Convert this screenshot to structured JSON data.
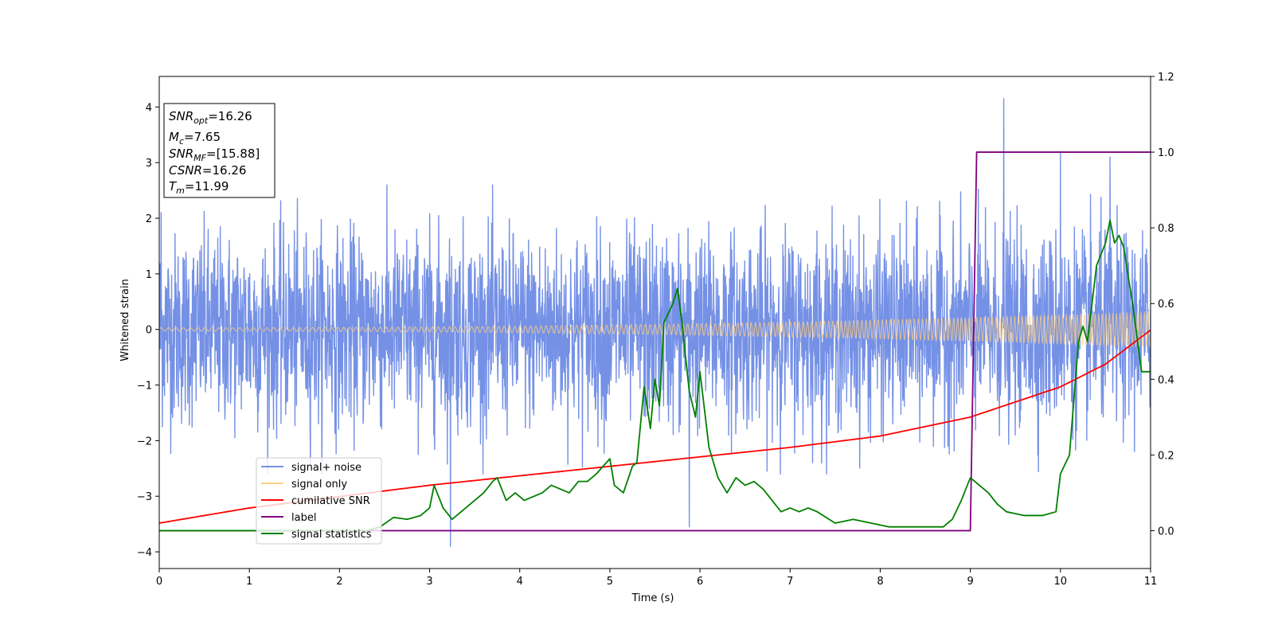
{
  "chart_data": {
    "type": "line",
    "title": "",
    "xlabel": "Time (s)",
    "ylabel": "Whitened strain",
    "xlim": [
      0,
      11
    ],
    "ylim": [
      -4.3,
      4.55
    ],
    "y2lim": [
      -0.1,
      1.2
    ],
    "xticks": [
      "0",
      "1",
      "2",
      "3",
      "4",
      "5",
      "6",
      "7",
      "8",
      "9",
      "10",
      "11"
    ],
    "yticks": [
      "−4",
      "−3",
      "−2",
      "−1",
      "0",
      "1",
      "2",
      "3",
      "4"
    ],
    "y2ticks": [
      "0.0",
      "0.2",
      "0.4",
      "0.6",
      "0.8",
      "1.0",
      "1.2"
    ],
    "grid": false,
    "legend_position": "lower-left",
    "info_box": [
      {
        "base": "SNR",
        "sub": "opt",
        "value": "=16.26"
      },
      {
        "base": "M",
        "sub": "c",
        "value": "=7.65"
      },
      {
        "base": "SNR",
        "sub": "MF",
        "value": "=[15.88]"
      },
      {
        "base": "CSNR",
        "sub": "",
        "value": "=16.26"
      },
      {
        "base": "T",
        "sub": "m",
        "value": "=11.99"
      }
    ],
    "series": [
      {
        "name": "signal+ noise",
        "color": "#7591e6",
        "axis": "left",
        "kind": "noise",
        "sigma": 0.85,
        "spikes": [
          [
            3.23,
            -3.9
          ],
          [
            5.88,
            -3.55
          ],
          [
            9.37,
            4.15
          ],
          [
            10.0,
            3.2
          ],
          [
            0.02,
            2.1
          ],
          [
            10.55,
            3.1
          ]
        ]
      },
      {
        "name": "signal only",
        "color": "#ffcf80",
        "axis": "left",
        "kind": "chirp",
        "amp_start": 0.03,
        "amp_end": 0.32
      },
      {
        "name": "cumilative SNR",
        "color": "#ff0000",
        "axis": "right",
        "kind": "curve",
        "x": [
          0,
          1,
          2,
          3,
          4,
          5,
          6,
          7,
          8,
          9,
          10,
          10.5,
          11
        ],
        "y": [
          0.02,
          0.06,
          0.09,
          0.12,
          0.145,
          0.17,
          0.195,
          0.22,
          0.25,
          0.3,
          0.38,
          0.44,
          0.53
        ]
      },
      {
        "name": "label",
        "color": "#800080",
        "axis": "right",
        "kind": "step",
        "x": [
          0,
          9.0,
          9.07,
          11
        ],
        "y": [
          0.0,
          0.0,
          1.0,
          1.0
        ]
      },
      {
        "name": "signal statistics",
        "color": "#008000",
        "axis": "right",
        "kind": "curve",
        "x": [
          0,
          2.3,
          2.45,
          2.6,
          2.75,
          2.9,
          3.0,
          3.05,
          3.15,
          3.25,
          3.35,
          3.5,
          3.6,
          3.7,
          3.75,
          3.85,
          3.95,
          4.05,
          4.15,
          4.25,
          4.35,
          4.45,
          4.55,
          4.65,
          4.75,
          4.85,
          5.0,
          5.05,
          5.15,
          5.25,
          5.3,
          5.38,
          5.45,
          5.5,
          5.55,
          5.6,
          5.7,
          5.75,
          5.8,
          5.88,
          5.95,
          6.0,
          6.1,
          6.2,
          6.3,
          6.4,
          6.5,
          6.6,
          6.7,
          6.8,
          6.9,
          7.0,
          7.1,
          7.2,
          7.3,
          7.5,
          7.7,
          7.9,
          8.1,
          8.4,
          8.7,
          8.8,
          8.9,
          9.0,
          9.1,
          9.2,
          9.3,
          9.4,
          9.5,
          9.6,
          9.8,
          9.95,
          10.0,
          10.1,
          10.2,
          10.25,
          10.3,
          10.4,
          10.5,
          10.55,
          10.6,
          10.65,
          10.7,
          10.8,
          10.9,
          11.0
        ],
        "y": [
          0.0,
          0.0,
          0.01,
          0.035,
          0.03,
          0.04,
          0.06,
          0.12,
          0.06,
          0.03,
          0.05,
          0.08,
          0.1,
          0.13,
          0.14,
          0.08,
          0.1,
          0.08,
          0.09,
          0.1,
          0.12,
          0.11,
          0.1,
          0.13,
          0.13,
          0.15,
          0.19,
          0.12,
          0.1,
          0.17,
          0.18,
          0.38,
          0.27,
          0.4,
          0.33,
          0.55,
          0.6,
          0.64,
          0.55,
          0.37,
          0.3,
          0.42,
          0.22,
          0.14,
          0.1,
          0.14,
          0.12,
          0.13,
          0.11,
          0.08,
          0.05,
          0.06,
          0.05,
          0.06,
          0.05,
          0.02,
          0.03,
          0.02,
          0.01,
          0.01,
          0.01,
          0.03,
          0.08,
          0.14,
          0.12,
          0.1,
          0.07,
          0.05,
          0.045,
          0.04,
          0.04,
          0.05,
          0.15,
          0.2,
          0.5,
          0.54,
          0.5,
          0.7,
          0.76,
          0.82,
          0.76,
          0.78,
          0.75,
          0.6,
          0.42,
          0.42
        ]
      }
    ]
  }
}
